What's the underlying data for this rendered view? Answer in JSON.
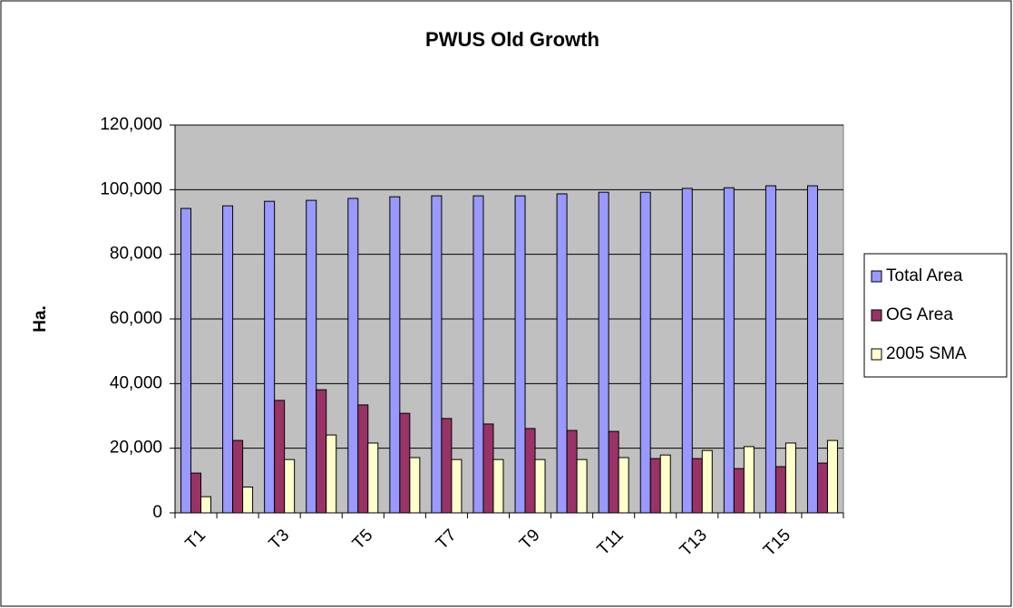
{
  "chart_data": {
    "type": "bar",
    "title": "PWUS Old Growth",
    "y_label": "Ha.",
    "categories": [
      "T1",
      null,
      "T3",
      null,
      "T5",
      null,
      "T7",
      null,
      "T9",
      null,
      "T11",
      null,
      "T13",
      null,
      "T15",
      null
    ],
    "series": [
      {
        "name": "Total Area",
        "color": "#9999ff",
        "values": [
          94200,
          95000,
          96400,
          96700,
          97300,
          97800,
          98100,
          98100,
          98100,
          98700,
          99200,
          99200,
          100400,
          100600,
          101200,
          101200
        ]
      },
      {
        "name": "OG Area",
        "color": "#993366",
        "values": [
          12300,
          22400,
          34800,
          38100,
          33400,
          30800,
          29200,
          27500,
          26100,
          25500,
          25200,
          16800,
          16800,
          13700,
          14300,
          15400
        ]
      },
      {
        "name": "2005 SMA",
        "color": "#ffffcc",
        "values": [
          5000,
          8000,
          16500,
          24100,
          21600,
          17100,
          16500,
          16500,
          16500,
          16500,
          17100,
          17900,
          19300,
          20500,
          21600,
          22400
        ]
      }
    ],
    "ylim": [
      0,
      120000
    ],
    "yticks": [
      0,
      {
        "value": 20000,
        "label": "20,000"
      },
      {
        "value": 40000,
        "label": "40,000"
      },
      {
        "value": 60000,
        "label": "60,000"
      },
      {
        "value": 80000,
        "label": "80,000"
      },
      {
        "value": 100000,
        "label": "100,000"
      },
      {
        "value": 120000,
        "label": "120,000"
      }
    ],
    "grid": true,
    "plot_background": "#c0c0c0",
    "legend": "right"
  }
}
